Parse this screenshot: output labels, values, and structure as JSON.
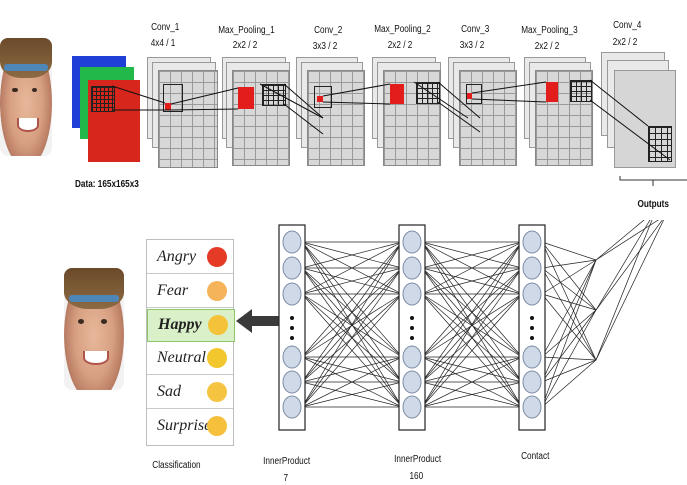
{
  "cnn_layers": [
    {
      "name": "Conv_1",
      "params": "4x4 / 1"
    },
    {
      "name": "Max_Pooling_1",
      "params": "2x2 / 2"
    },
    {
      "name": "Conv_2",
      "params": "3x3 / 2"
    },
    {
      "name": "Max_Pooling_2",
      "params": "2x2 / 2"
    },
    {
      "name": "Conv_3",
      "params": "3x3 / 2"
    },
    {
      "name": "Max_Pooling_3",
      "params": "2x2 / 2"
    },
    {
      "name": "Conv_4",
      "params": "2x2 / 2"
    }
  ],
  "data_label": "Data: 165x165x3",
  "outputs_label": "Outputs",
  "classification": {
    "title": "Classification",
    "items": [
      {
        "label": "Angry",
        "icon": "angry-emoji-icon",
        "color": "#e53b26"
      },
      {
        "label": "Fear",
        "icon": "fear-emoji-icon",
        "color": "#f6b45a"
      },
      {
        "label": "Happy",
        "icon": "happy-emoji-icon",
        "color": "#f4c33a"
      },
      {
        "label": "Neutral",
        "icon": "neutral-emoji-icon",
        "color": "#f2c62d"
      },
      {
        "label": "Sad",
        "icon": "sad-emoji-icon",
        "color": "#f5c542"
      },
      {
        "label": "Surprise",
        "icon": "surprise-emoji-icon",
        "color": "#f6c03c"
      }
    ],
    "highlighted": "Happy",
    "highlight_color": "#d9f0c9"
  },
  "fc_layers": [
    {
      "name": "InnerProduct",
      "size": "7"
    },
    {
      "name": "InnerProduct",
      "size": "160"
    },
    {
      "name": "Contact",
      "size": ""
    }
  ],
  "input_channels_colors": [
    "#1f3fd6",
    "#23b84a",
    "#d7261c"
  ]
}
